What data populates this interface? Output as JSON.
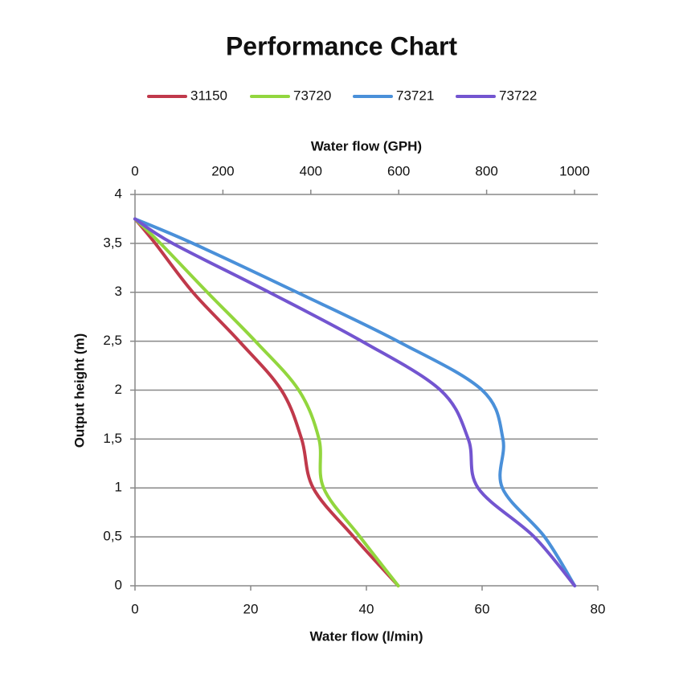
{
  "chart_data": {
    "type": "line",
    "title": "Performance Chart",
    "xlabel": "Water flow (l/min)",
    "x2label": "Water flow (GPH)",
    "ylabel": "Output height (m)",
    "xlim": [
      0,
      80
    ],
    "xticks": [
      0,
      20,
      40,
      60,
      80
    ],
    "x2lim": [
      0,
      1053
    ],
    "x2ticks": [
      0,
      200,
      400,
      600,
      800,
      1000
    ],
    "ylim": [
      0,
      4
    ],
    "yticks": [
      0,
      {
        "value": 0.5,
        "label": "0,5"
      },
      1,
      {
        "value": 1.5,
        "label": "1,5"
      },
      2,
      {
        "value": 2.5,
        "label": "2,5"
      },
      3,
      {
        "value": 3.5,
        "label": "3,5"
      },
      4
    ],
    "grid": true,
    "legend": "top",
    "series": [
      {
        "name": "31150",
        "color": "#c0394b",
        "x": [
          45.5,
          37.8,
          30.8,
          28.8,
          25.3,
          18,
          10,
          3.5,
          0
        ],
        "values": [
          0,
          0.5,
          1,
          1.5,
          2,
          2.5,
          3,
          3.5,
          3.75
        ]
      },
      {
        "name": "73720",
        "color": "#92d63e",
        "x": [
          45.5,
          38.9,
          32.6,
          31.8,
          28.3,
          20.8,
          12.5,
          4.4,
          0
        ],
        "values": [
          0,
          0.5,
          1,
          1.5,
          2,
          2.5,
          3,
          3.5,
          3.75
        ]
      },
      {
        "name": "73721",
        "color": "#4a90d9",
        "x": [
          76,
          70.8,
          63.5,
          63.6,
          60,
          45.4,
          28,
          10,
          0
        ],
        "values": [
          0,
          0.5,
          1,
          1.5,
          2,
          2.5,
          3,
          3.5,
          3.75
        ]
      },
      {
        "name": "73722",
        "color": "#7355d0",
        "x": [
          76,
          69,
          59.3,
          57.6,
          52.8,
          39.2,
          23.2,
          6.5,
          0
        ],
        "values": [
          0,
          0.5,
          1,
          1.5,
          2,
          2.5,
          3,
          3.5,
          3.75
        ]
      }
    ]
  }
}
